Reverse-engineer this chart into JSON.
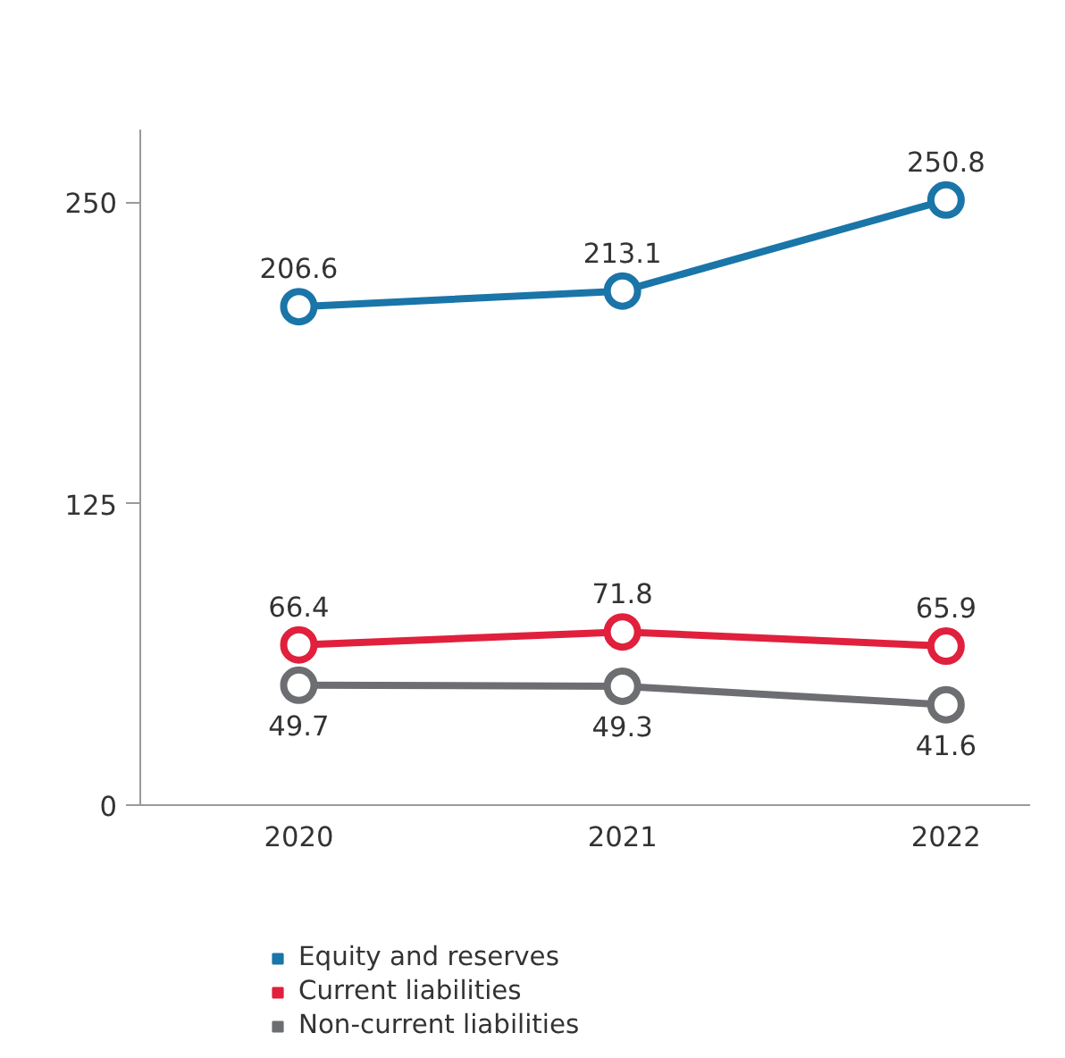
{
  "chart_data": {
    "type": "line",
    "categories": [
      "2020",
      "2021",
      "2022"
    ],
    "series": [
      {
        "name": "Equity and reserves",
        "color": "#1a75a8",
        "values": [
          206.6,
          213.1,
          250.8
        ]
      },
      {
        "name": "Current liabilities",
        "color": "#e0203c",
        "values": [
          66.4,
          71.8,
          65.9
        ]
      },
      {
        "name": "Non-current liabilities",
        "color": "#6d6e71",
        "values": [
          49.7,
          49.3,
          41.6
        ]
      }
    ],
    "ylim": [
      0,
      280
    ],
    "yticks": [
      0,
      125,
      250
    ],
    "grid": false,
    "legend": "bottom",
    "marker": "circle",
    "line_style": "solid",
    "data_labels": true
  }
}
